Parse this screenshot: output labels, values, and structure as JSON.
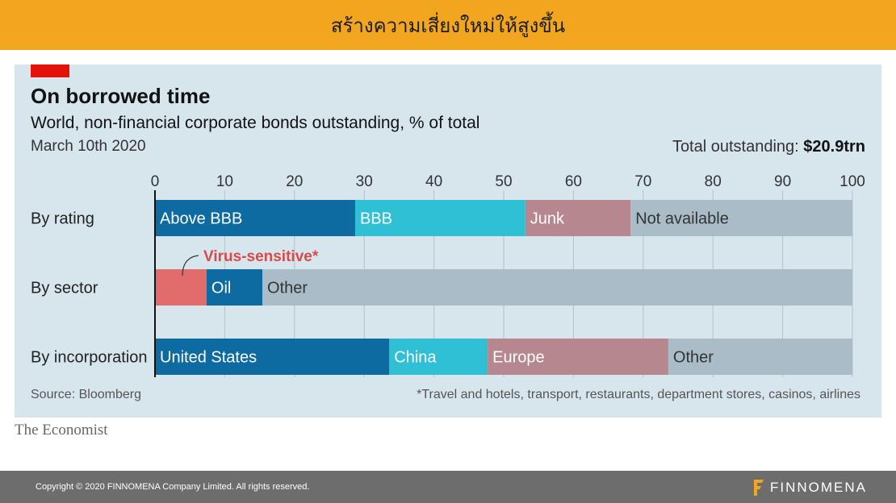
{
  "header": {
    "title": "สร้างความเสี่ยงใหม่ให้สูงขึ้น"
  },
  "chart": {
    "title": "On borrowed time",
    "subtitle": "World, non-financial corporate bonds outstanding, % of total",
    "date": "March 10th 2020",
    "total_label": "Total outstanding:",
    "total_value": "$20.9trn",
    "source": "Source: Bloomberg",
    "footnote": "*Travel and hotels, transport, restaurants, department stores, casinos, airlines",
    "publisher": "The Economist"
  },
  "chart_data": {
    "type": "bar",
    "stacked": true,
    "orientation": "horizontal",
    "x_ticks": [
      0,
      10,
      20,
      30,
      40,
      50,
      60,
      70,
      80,
      90,
      100
    ],
    "xlim": [
      0,
      100
    ],
    "grid": true,
    "categories": [
      "By rating",
      "By sector",
      "By incorporation"
    ],
    "rows": [
      {
        "label": "By rating",
        "segments": [
          {
            "name": "Above BBB",
            "value": 28.7,
            "color": "#0e6ba1"
          },
          {
            "name": "BBB",
            "value": 24.4,
            "color": "#2fc0d6"
          },
          {
            "name": "Junk",
            "value": 15.1,
            "color": "#b6878f"
          },
          {
            "name": "Not available",
            "value": 31.8,
            "color": "#a9bcc8"
          }
        ]
      },
      {
        "label": "By sector",
        "segments": [
          {
            "name": "",
            "value": 7.4,
            "color": "#e26c6c"
          },
          {
            "name": "Oil",
            "value": 8,
            "color": "#0e6ba1"
          },
          {
            "name": "Other",
            "value": 84.6,
            "color": "#a9bcc8"
          }
        ]
      },
      {
        "label": "By incorporation",
        "segments": [
          {
            "name": "United States",
            "value": 33.6,
            "color": "#0e6ba1"
          },
          {
            "name": "China",
            "value": 14.1,
            "color": "#2fc0d6"
          },
          {
            "name": "Europe",
            "value": 25.9,
            "color": "#b6878f"
          },
          {
            "name": "Other",
            "value": 26.4,
            "color": "#a9bcc8"
          }
        ]
      }
    ],
    "annotation": {
      "text": "Virus-sensitive*",
      "color": "#d94a4a"
    }
  },
  "footer": {
    "copyright": "Copyright © 2020 FINNOMENA Company Limited. All rights reserved.",
    "brand": "FINNOMENA"
  }
}
